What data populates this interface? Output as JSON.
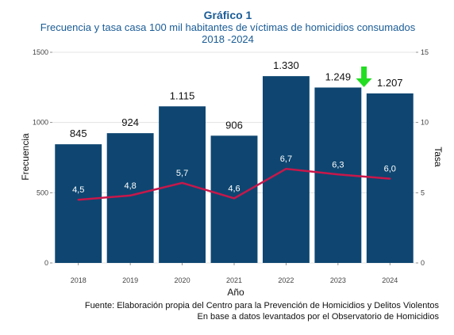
{
  "colors": {
    "title": "#1a5c96",
    "bar": "#0e4671",
    "line": "#c8174a",
    "arrow": "#22dd22",
    "bar_label": "#111111",
    "rate_label": "#ffffff",
    "grid": "#dddddd",
    "axis_text": "#444444"
  },
  "chart_data": {
    "type": "bar",
    "title": "Gráfico 1",
    "subtitle_line1": "Frecuencia y tasa casa 100 mil habitantes de víctimas de homicidios consumados",
    "subtitle_line2": "2018 -2024",
    "xlabel": "Año",
    "ylabel": "Frecuencia",
    "y2label": "Tasa",
    "categories": [
      "2018",
      "2019",
      "2020",
      "2021",
      "2022",
      "2023",
      "2024"
    ],
    "ylim": [
      0,
      1500
    ],
    "yticks": [
      "0",
      "500",
      "1000",
      "1500"
    ],
    "y2lim": [
      0,
      15
    ],
    "y2ticks": [
      "0",
      "5",
      "10",
      "15"
    ],
    "grid": true,
    "series": [
      {
        "type": "bar",
        "values": [
          845,
          924,
          1115,
          906,
          1330,
          1249,
          1207
        ],
        "labels": [
          "845",
          "924",
          "1.115",
          "906",
          "1.330",
          "1.249",
          "1.207"
        ]
      },
      {
        "type": "line",
        "axis": "right",
        "values": [
          4.5,
          4.8,
          5.7,
          4.6,
          6.7,
          6.3,
          6.0
        ],
        "labels": [
          "4,5",
          "4,8",
          "5,7",
          "4,6",
          "6,7",
          "6,3",
          "6,0"
        ]
      }
    ],
    "annotations": [
      {
        "type": "arrow",
        "icon": "down-arrow-icon",
        "category": "2023"
      }
    ],
    "source_line1": "Fuente: Elaboración propia del Centro para la Prevención de Homicidios y Delitos Violentos",
    "source_line2": "En base a datos levantados por el Observatorio de Homicidios"
  }
}
